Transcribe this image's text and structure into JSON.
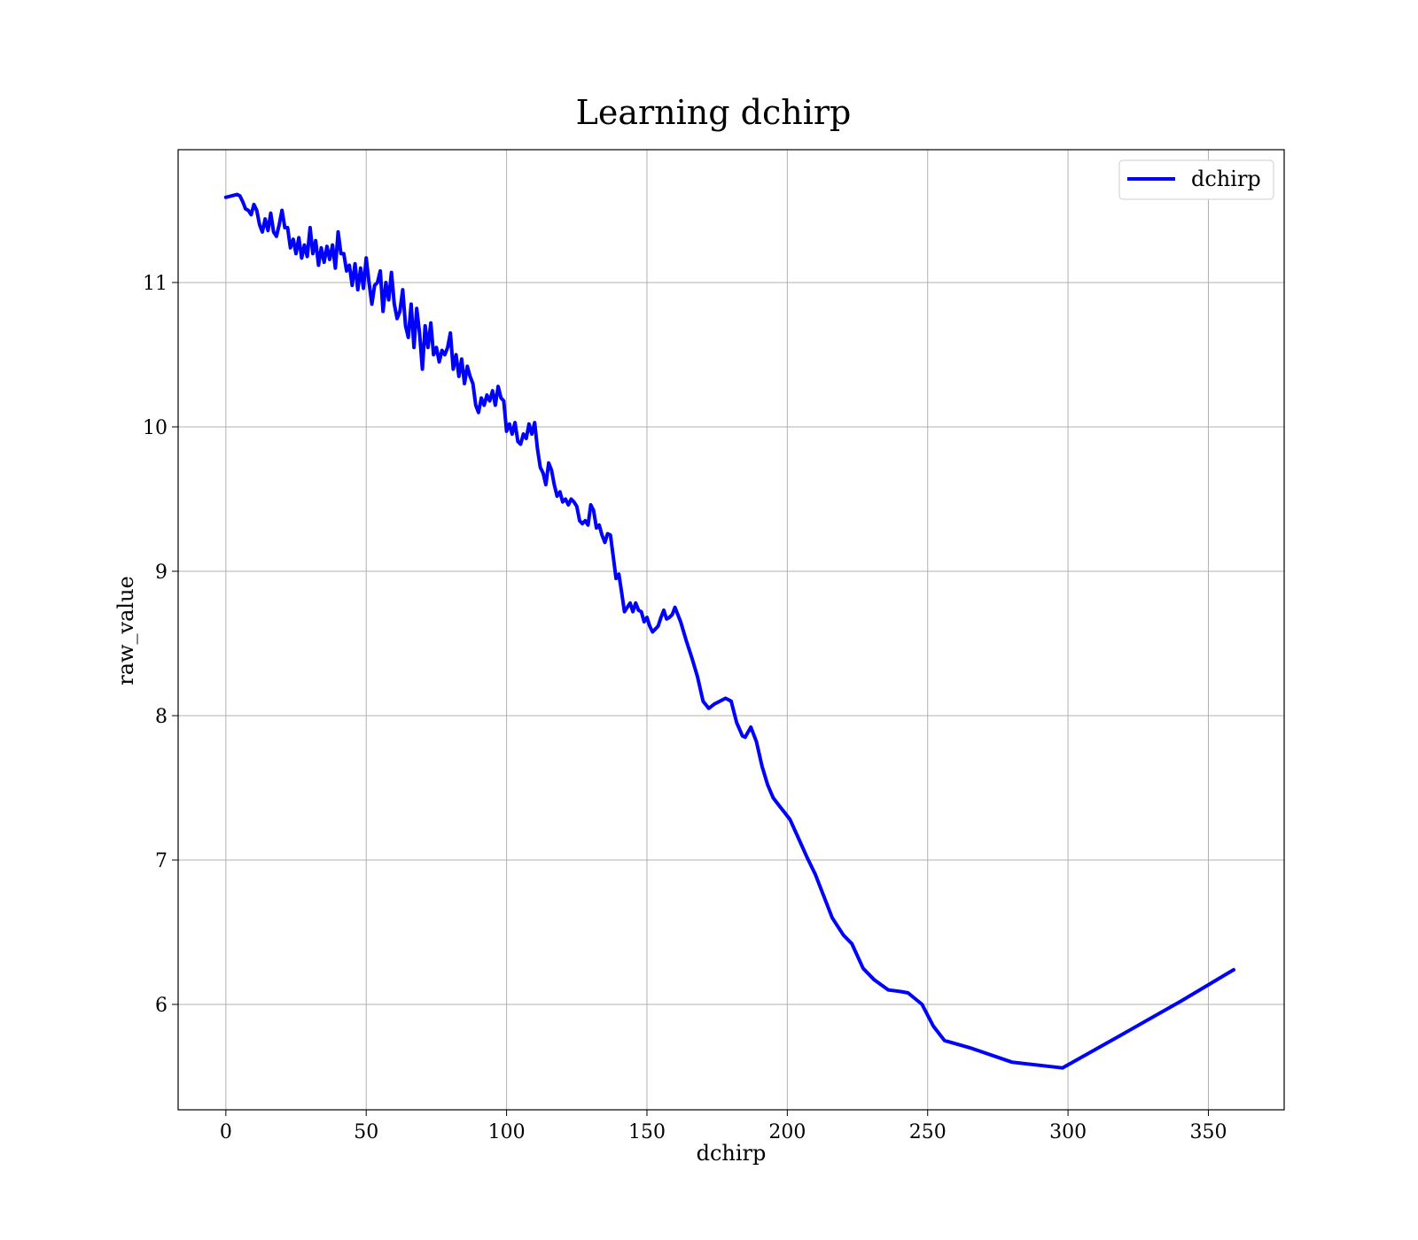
{
  "chart_data": {
    "type": "line",
    "title": "Learning dchirp",
    "xlabel": "dchirp",
    "ylabel": "raw_value",
    "xlim": [
      -17,
      377
    ],
    "ylim": [
      5.27,
      11.92
    ],
    "xticks": [
      0,
      50,
      100,
      150,
      200,
      250,
      300,
      350
    ],
    "yticks": [
      6,
      7,
      8,
      9,
      10,
      11
    ],
    "grid": true,
    "legend_position": "top-right",
    "series": [
      {
        "name": "dchirp",
        "color": "#0000ff",
        "points": [
          [
            0,
            11.59
          ],
          [
            2,
            11.6
          ],
          [
            4,
            11.61
          ],
          [
            5,
            11.6
          ],
          [
            6,
            11.56
          ],
          [
            7,
            11.51
          ],
          [
            8,
            11.5
          ],
          [
            9,
            11.47
          ],
          [
            10,
            11.54
          ],
          [
            11,
            11.5
          ],
          [
            12,
            11.4
          ],
          [
            13,
            11.35
          ],
          [
            14,
            11.44
          ],
          [
            15,
            11.36
          ],
          [
            16,
            11.48
          ],
          [
            17,
            11.35
          ],
          [
            18,
            11.32
          ],
          [
            19,
            11.4
          ],
          [
            20,
            11.5
          ],
          [
            21,
            11.38
          ],
          [
            22,
            11.38
          ],
          [
            23,
            11.24
          ],
          [
            24,
            11.3
          ],
          [
            25,
            11.2
          ],
          [
            26,
            11.31
          ],
          [
            27,
            11.17
          ],
          [
            28,
            11.26
          ],
          [
            29,
            11.18
          ],
          [
            30,
            11.38
          ],
          [
            31,
            11.2
          ],
          [
            32,
            11.29
          ],
          [
            33,
            11.12
          ],
          [
            34,
            11.24
          ],
          [
            35,
            11.14
          ],
          [
            36,
            11.25
          ],
          [
            37,
            11.16
          ],
          [
            38,
            11.26
          ],
          [
            39,
            11.1
          ],
          [
            40,
            11.35
          ],
          [
            41,
            11.2
          ],
          [
            42,
            11.2
          ],
          [
            43,
            11.08
          ],
          [
            44,
            11.12
          ],
          [
            45,
            10.98
          ],
          [
            46,
            11.13
          ],
          [
            47,
            10.95
          ],
          [
            48,
            11.1
          ],
          [
            49,
            10.96
          ],
          [
            50,
            11.17
          ],
          [
            51,
            11.0
          ],
          [
            52,
            10.85
          ],
          [
            53,
            10.98
          ],
          [
            54,
            11.0
          ],
          [
            55,
            11.08
          ],
          [
            56,
            10.8
          ],
          [
            57,
            11.0
          ],
          [
            58,
            10.88
          ],
          [
            59,
            11.07
          ],
          [
            60,
            10.85
          ],
          [
            61,
            10.75
          ],
          [
            62,
            10.8
          ],
          [
            63,
            10.95
          ],
          [
            64,
            10.7
          ],
          [
            65,
            10.62
          ],
          [
            66,
            10.85
          ],
          [
            67,
            10.55
          ],
          [
            68,
            10.82
          ],
          [
            69,
            10.65
          ],
          [
            70,
            10.4
          ],
          [
            71,
            10.7
          ],
          [
            72,
            10.55
          ],
          [
            73,
            10.72
          ],
          [
            74,
            10.5
          ],
          [
            75,
            10.55
          ],
          [
            76,
            10.45
          ],
          [
            77,
            10.53
          ],
          [
            78,
            10.5
          ],
          [
            79,
            10.55
          ],
          [
            80,
            10.65
          ],
          [
            81,
            10.4
          ],
          [
            82,
            10.5
          ],
          [
            83,
            10.35
          ],
          [
            84,
            10.47
          ],
          [
            85,
            10.3
          ],
          [
            86,
            10.42
          ],
          [
            87,
            10.35
          ],
          [
            88,
            10.3
          ],
          [
            89,
            10.15
          ],
          [
            90,
            10.1
          ],
          [
            91,
            10.2
          ],
          [
            92,
            10.15
          ],
          [
            93,
            10.22
          ],
          [
            94,
            10.18
          ],
          [
            95,
            10.25
          ],
          [
            96,
            10.15
          ],
          [
            97,
            10.28
          ],
          [
            98,
            10.2
          ],
          [
            99,
            10.18
          ],
          [
            100,
            9.97
          ],
          [
            101,
            10.02
          ],
          [
            102,
            9.95
          ],
          [
            103,
            10.03
          ],
          [
            104,
            9.9
          ],
          [
            105,
            9.88
          ],
          [
            106,
            9.95
          ],
          [
            107,
            9.92
          ],
          [
            108,
            10.02
          ],
          [
            109,
            9.95
          ],
          [
            110,
            10.03
          ],
          [
            111,
            9.85
          ],
          [
            112,
            9.72
          ],
          [
            113,
            9.68
          ],
          [
            114,
            9.6
          ],
          [
            115,
            9.75
          ],
          [
            116,
            9.7
          ],
          [
            117,
            9.6
          ],
          [
            118,
            9.52
          ],
          [
            119,
            9.55
          ],
          [
            120,
            9.48
          ],
          [
            121,
            9.5
          ],
          [
            122,
            9.46
          ],
          [
            123,
            9.5
          ],
          [
            124,
            9.48
          ],
          [
            125,
            9.45
          ],
          [
            126,
            9.35
          ],
          [
            127,
            9.33
          ],
          [
            128,
            9.35
          ],
          [
            129,
            9.32
          ],
          [
            130,
            9.46
          ],
          [
            131,
            9.42
          ],
          [
            132,
            9.3
          ],
          [
            133,
            9.32
          ],
          [
            134,
            9.25
          ],
          [
            135,
            9.2
          ],
          [
            136,
            9.26
          ],
          [
            137,
            9.25
          ],
          [
            138,
            9.1
          ],
          [
            139,
            8.95
          ],
          [
            140,
            8.98
          ],
          [
            141,
            8.85
          ],
          [
            142,
            8.72
          ],
          [
            143,
            8.75
          ],
          [
            144,
            8.78
          ],
          [
            145,
            8.72
          ],
          [
            146,
            8.78
          ],
          [
            147,
            8.73
          ],
          [
            148,
            8.72
          ],
          [
            149,
            8.65
          ],
          [
            150,
            8.68
          ],
          [
            151,
            8.62
          ],
          [
            152,
            8.58
          ],
          [
            153,
            8.6
          ],
          [
            154,
            8.62
          ],
          [
            155,
            8.68
          ],
          [
            156,
            8.73
          ],
          [
            157,
            8.67
          ],
          [
            158,
            8.68
          ],
          [
            159,
            8.7
          ],
          [
            160,
            8.75
          ],
          [
            162,
            8.65
          ],
          [
            164,
            8.52
          ],
          [
            166,
            8.4
          ],
          [
            168,
            8.27
          ],
          [
            170,
            8.1
          ],
          [
            172,
            8.05
          ],
          [
            174,
            8.08
          ],
          [
            176,
            8.1
          ],
          [
            178,
            8.12
          ],
          [
            180,
            8.1
          ],
          [
            182,
            7.95
          ],
          [
            184,
            7.86
          ],
          [
            185,
            7.85
          ],
          [
            187,
            7.92
          ],
          [
            189,
            7.82
          ],
          [
            191,
            7.65
          ],
          [
            193,
            7.52
          ],
          [
            195,
            7.43
          ],
          [
            197,
            7.38
          ],
          [
            199,
            7.33
          ],
          [
            201,
            7.28
          ],
          [
            204,
            7.15
          ],
          [
            207,
            7.02
          ],
          [
            210,
            6.9
          ],
          [
            213,
            6.75
          ],
          [
            216,
            6.6
          ],
          [
            220,
            6.48
          ],
          [
            223,
            6.42
          ],
          [
            227,
            6.25
          ],
          [
            231,
            6.17
          ],
          [
            236,
            6.1
          ],
          [
            240,
            6.09
          ],
          [
            243,
            6.08
          ],
          [
            248,
            6.0
          ],
          [
            252,
            5.85
          ],
          [
            256,
            5.75
          ],
          [
            265,
            5.7
          ],
          [
            280,
            5.6
          ],
          [
            298,
            5.56
          ],
          [
            320,
            5.8
          ],
          [
            340,
            6.02
          ],
          [
            359,
            6.24
          ]
        ]
      }
    ]
  }
}
